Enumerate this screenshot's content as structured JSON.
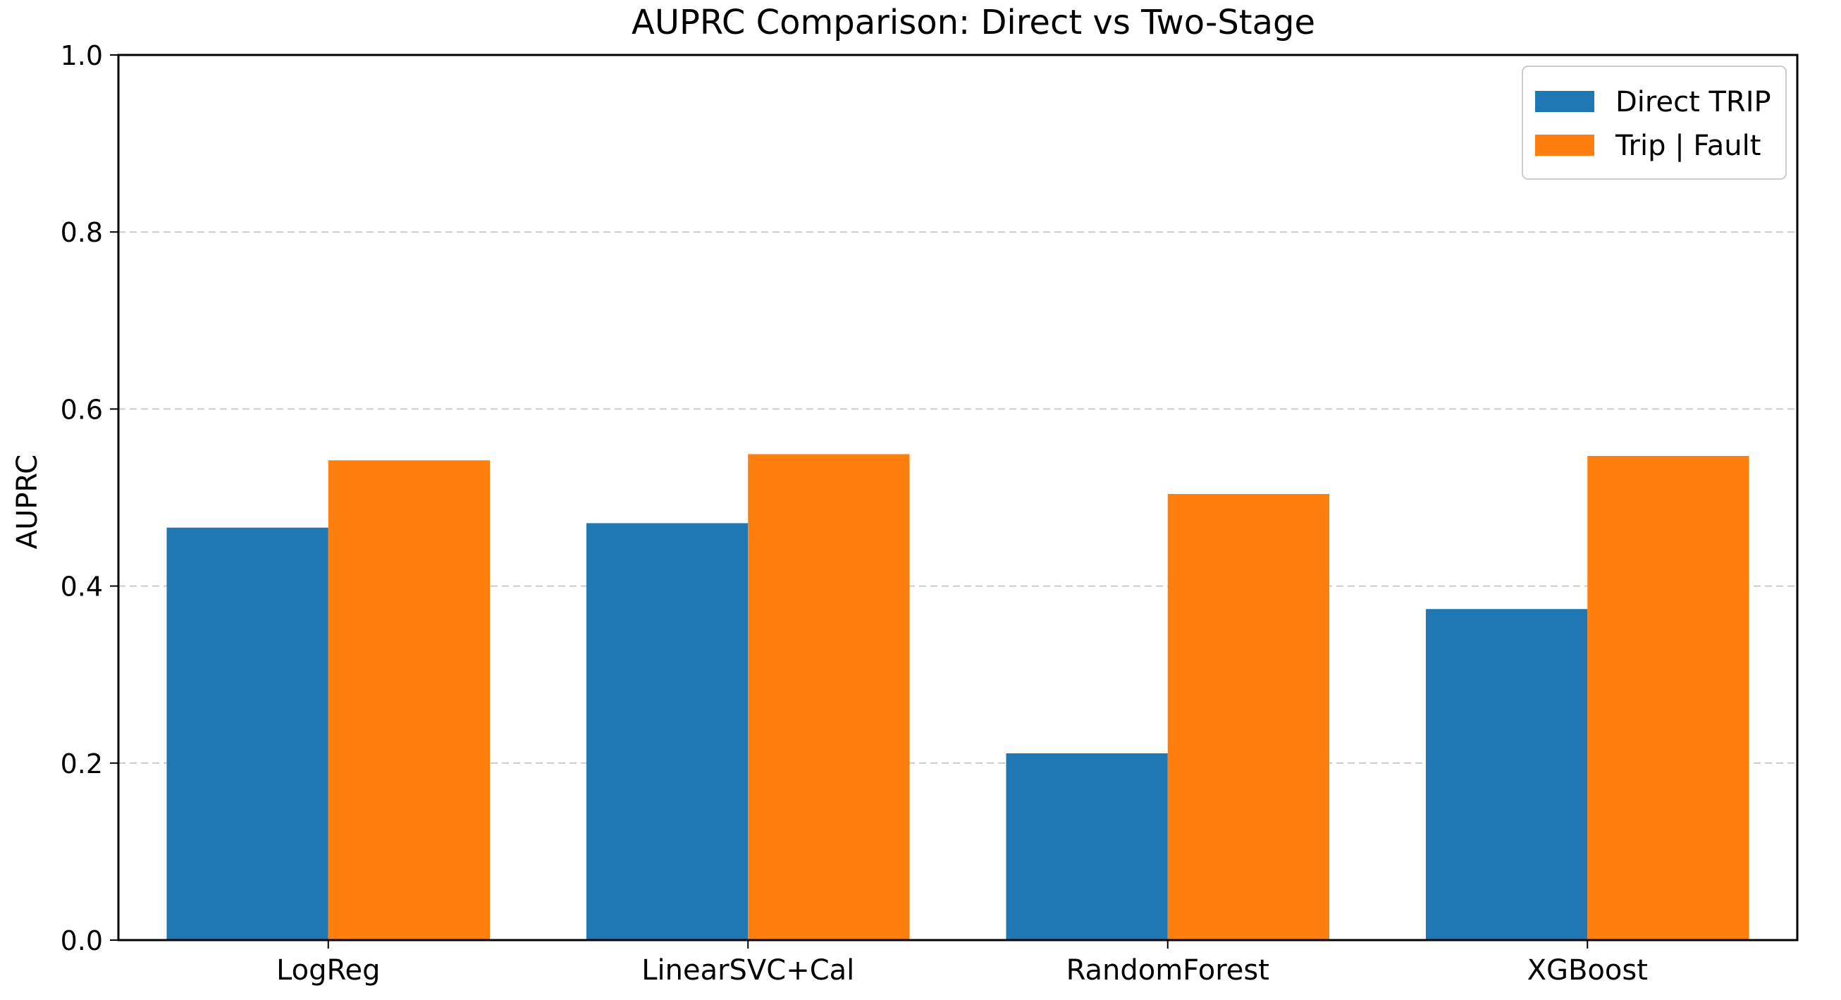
{
  "chart_data": {
    "type": "bar",
    "title": "AUPRC Comparison: Direct vs Two-Stage",
    "xlabel": "",
    "ylabel": "AUPRC",
    "categories": [
      "LogReg",
      "LinearSVC+Cal",
      "RandomForest",
      "XGBoost"
    ],
    "series": [
      {
        "name": "Direct TRIP",
        "color": "#1f77b4",
        "values": [
          0.466,
          0.471,
          0.211,
          0.374
        ]
      },
      {
        "name": "Trip | Fault",
        "color": "#ff7f0e",
        "values": [
          0.542,
          0.549,
          0.504,
          0.547
        ]
      }
    ],
    "ylim": [
      0,
      1.0
    ],
    "yticks": [
      "0.0",
      "0.2",
      "0.4",
      "0.6",
      "0.8",
      "1.0"
    ],
    "grid": "y-dashed",
    "legend": "top-right"
  }
}
